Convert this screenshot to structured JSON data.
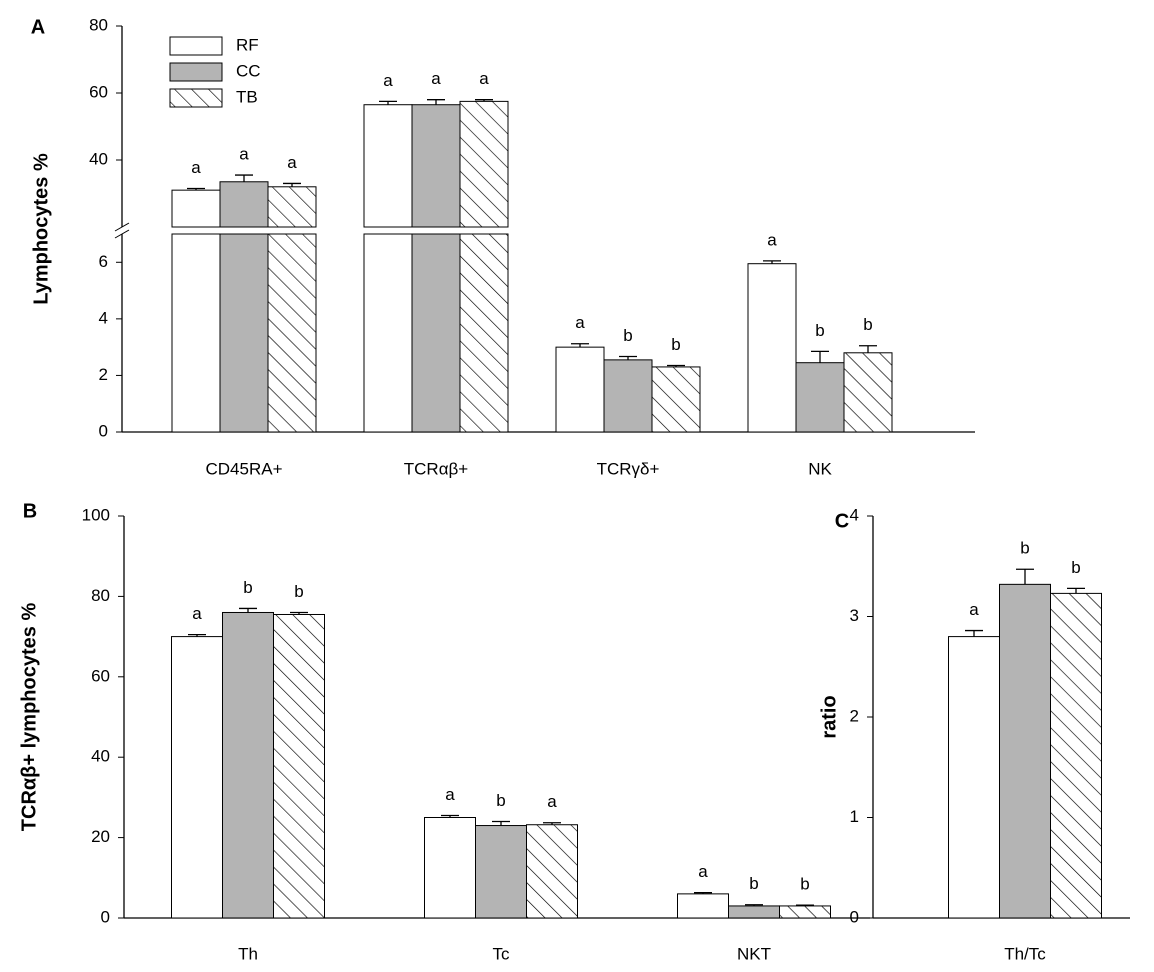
{
  "chart_data": [
    {
      "type": "bar",
      "panel_label": "A",
      "ylabel": "Lymphocytes %",
      "categories": [
        "CD45RA+",
        "TCRαβ+",
        "TCRγδ+",
        "NK"
      ],
      "ylim": [
        0,
        80
      ],
      "ybreak": [
        7,
        20
      ],
      "yticks": [
        0,
        2,
        4,
        6,
        40,
        60,
        80
      ],
      "series": [
        {
          "name": "RF",
          "color": "#ffffff",
          "hatch": false,
          "values": [
            31,
            56.5,
            3.0,
            5.95
          ],
          "errors": [
            0.5,
            1,
            0.12,
            0.1
          ],
          "letters": [
            "a",
            "a",
            "a",
            "a"
          ]
        },
        {
          "name": "CC",
          "color": "#b4b4b4",
          "hatch": false,
          "values": [
            33.5,
            56.5,
            2.55,
            2.45
          ],
          "errors": [
            2,
            1.5,
            0.12,
            0.4
          ],
          "letters": [
            "a",
            "a",
            "b",
            "b"
          ]
        },
        {
          "name": "TB",
          "color": "#ffffff",
          "hatch": true,
          "values": [
            32,
            57.5,
            2.3,
            2.8
          ],
          "errors": [
            1,
            0.5,
            0.05,
            0.25
          ],
          "letters": [
            "a",
            "a",
            "b",
            "b"
          ]
        }
      ]
    },
    {
      "type": "bar",
      "panel_label": "B",
      "ylabel": "TCRαβ+ lymphocytes %",
      "categories": [
        "Th",
        "Tc",
        "NKT"
      ],
      "ylim": [
        0,
        100
      ],
      "yticks": [
        0,
        20,
        40,
        60,
        80,
        100
      ],
      "series": [
        {
          "color": "#ffffff",
          "hatch": false,
          "values": [
            70,
            25,
            6
          ],
          "errors": [
            0.5,
            0.5,
            0.3
          ],
          "letters": [
            "a",
            "a",
            "a"
          ]
        },
        {
          "color": "#b4b4b4",
          "hatch": false,
          "values": [
            76,
            23,
            3
          ],
          "errors": [
            1,
            1,
            0.3
          ],
          "letters": [
            "b",
            "b",
            "b"
          ]
        },
        {
          "color": "#ffffff",
          "hatch": true,
          "values": [
            75.5,
            23.2,
            3
          ],
          "errors": [
            0.5,
            0.5,
            0.2
          ],
          "letters": [
            "b",
            "a",
            "b"
          ]
        }
      ]
    },
    {
      "type": "bar",
      "panel_label": "C",
      "ylabel": "ratio",
      "categories": [
        "Th/Tc"
      ],
      "ylim": [
        0,
        4
      ],
      "yticks": [
        0,
        1,
        2,
        3,
        4
      ],
      "series": [
        {
          "color": "#ffffff",
          "hatch": false,
          "values": [
            2.8
          ],
          "errors": [
            0.06
          ],
          "letters": [
            "a"
          ]
        },
        {
          "color": "#b4b4b4",
          "hatch": false,
          "values": [
            3.32
          ],
          "errors": [
            0.15
          ],
          "letters": [
            "b"
          ]
        },
        {
          "color": "#ffffff",
          "hatch": true,
          "values": [
            3.23
          ],
          "errors": [
            0.05
          ],
          "letters": [
            "b"
          ]
        }
      ]
    }
  ]
}
